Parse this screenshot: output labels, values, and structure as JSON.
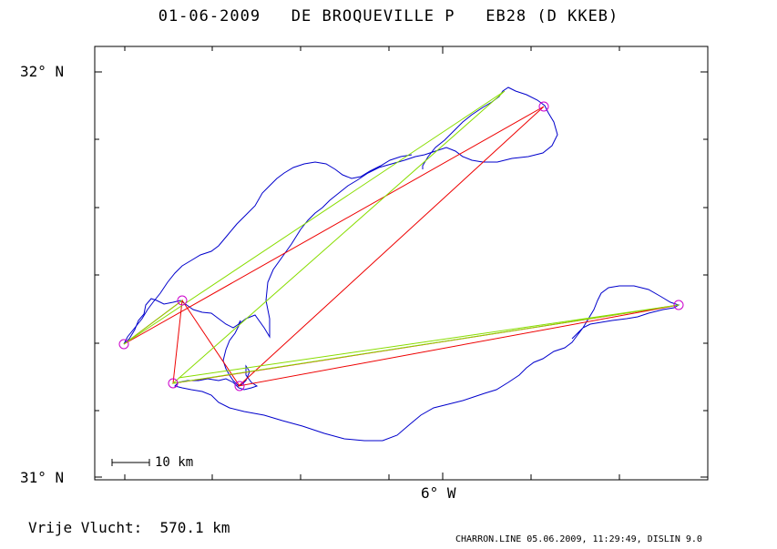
{
  "title": "01-06-2009   DE BROQUEVILLE P   EB28 (D KKEB)",
  "map": {
    "lat_top_label": "32° N",
    "lat_bottom_label": "31° N",
    "lon_label": "6° W",
    "scale_label": "10 km"
  },
  "footer": {
    "flight_label": "Vrije Vlucht:  570.1 km",
    "program_info": "CHARRON.LINE 05.06.2009, 11:29:49, DISLIN 9.0"
  },
  "colors": {
    "track": "#0000cc",
    "red_route": "#ee0000",
    "green_route": "#88dd00",
    "turnpoint": "#cc00cc",
    "frame": "#000000"
  }
}
